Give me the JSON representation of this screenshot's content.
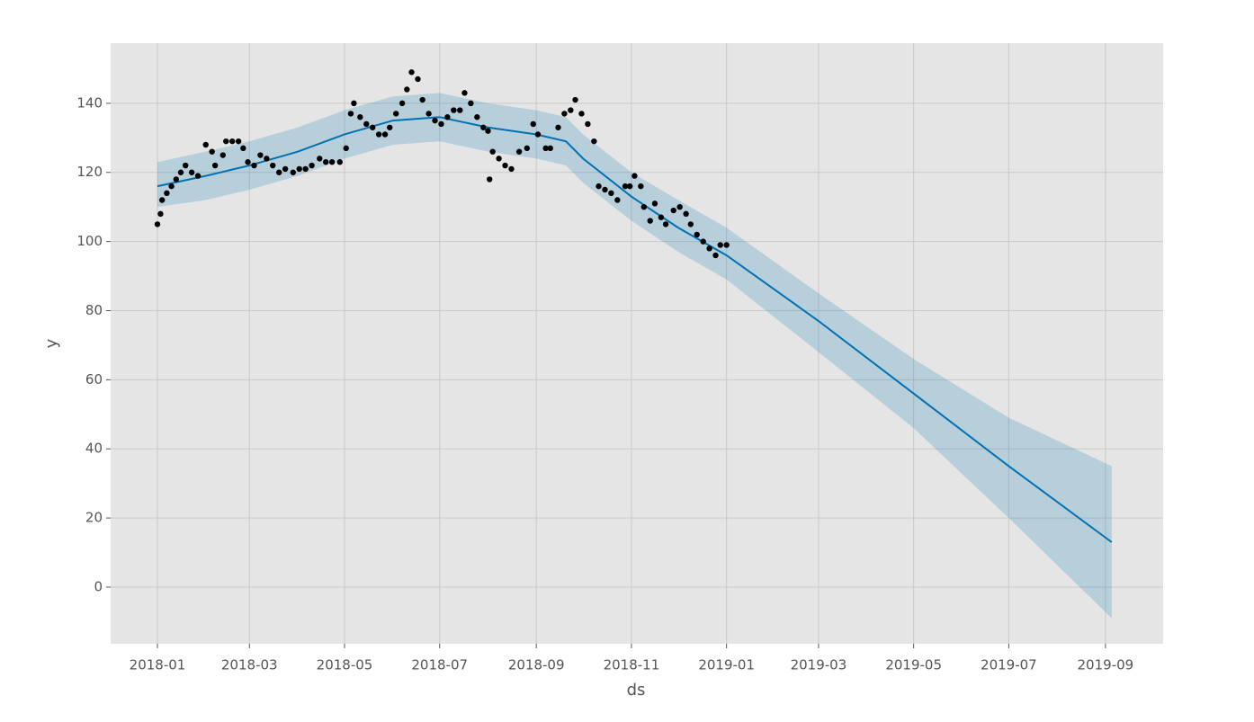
{
  "chart_data": {
    "type": "line",
    "x_label": "ds",
    "y_label": "y",
    "xlim": [
      17502,
      18177
    ],
    "ylim": [
      -16.4,
      157.4
    ],
    "xticks": [
      {
        "value": 17532,
        "label": "2018-01"
      },
      {
        "value": 17591,
        "label": "2018-03"
      },
      {
        "value": 17652,
        "label": "2018-05"
      },
      {
        "value": 17713,
        "label": "2018-07"
      },
      {
        "value": 17775,
        "label": "2018-09"
      },
      {
        "value": 17836,
        "label": "2018-11"
      },
      {
        "value": 17897,
        "label": "2019-01"
      },
      {
        "value": 17956,
        "label": "2019-03"
      },
      {
        "value": 18017,
        "label": "2019-05"
      },
      {
        "value": 18078,
        "label": "2019-07"
      },
      {
        "value": 18140,
        "label": "2019-09"
      }
    ],
    "yticks": [
      0,
      20,
      40,
      60,
      80,
      100,
      120,
      140
    ],
    "grid": true,
    "background": "#e5e5e5",
    "grid_color": "#c9c9c9",
    "points": {
      "color": "#000000",
      "x": [
        17532,
        17534,
        17535,
        17538,
        17541,
        17544,
        17547,
        17550,
        17554,
        17558,
        17563,
        17567,
        17569,
        17574,
        17576,
        17580,
        17584,
        17587,
        17590,
        17594,
        17598,
        17602,
        17606,
        17610,
        17614,
        17619,
        17623,
        17627,
        17631,
        17636,
        17640,
        17644,
        17649,
        17653,
        17656,
        17658,
        17662,
        17666,
        17670,
        17674,
        17678,
        17681,
        17685,
        17689,
        17692,
        17695,
        17699,
        17702,
        17706,
        17710,
        17714,
        17718,
        17722,
        17726,
        17729,
        17733,
        17737,
        17741,
        17744,
        17745,
        17747,
        17751,
        17755,
        17759,
        17764,
        17769,
        17773,
        17776,
        17781,
        17784,
        17789,
        17793,
        17797,
        17800,
        17804,
        17808,
        17812,
        17815,
        17819,
        17823,
        17827,
        17832,
        17835,
        17838,
        17842,
        17844,
        17848,
        17851,
        17855,
        17858,
        17863,
        17867,
        17871,
        17874,
        17878,
        17882,
        17886,
        17890,
        17893,
        17897
      ],
      "values": [
        105,
        108,
        112,
        114,
        116,
        118,
        120,
        122,
        120,
        119,
        128,
        126,
        122,
        125,
        129,
        129,
        129,
        127,
        123,
        122,
        125,
        124,
        122,
        120,
        121,
        120,
        121,
        121,
        122,
        124,
        123,
        123,
        123,
        127,
        137,
        140,
        136,
        134,
        133,
        131,
        131,
        133,
        137,
        140,
        144,
        149,
        147,
        141,
        137,
        135,
        134,
        136,
        138,
        138,
        143,
        140,
        136,
        133,
        132,
        118,
        126,
        124,
        122,
        121,
        126,
        127,
        134,
        131,
        127,
        127,
        133,
        137,
        138,
        141,
        137,
        134,
        129,
        116,
        115,
        114,
        112,
        116,
        116,
        119,
        116,
        110,
        106,
        111,
        107,
        105,
        109,
        110,
        108,
        105,
        102,
        100,
        98,
        96,
        99,
        99
      ]
    },
    "forecast": {
      "color": "#0072b2",
      "band_color": "#0072b2",
      "x": [
        17532,
        17563,
        17591,
        17622,
        17652,
        17683,
        17713,
        17744,
        17775,
        17794,
        17805,
        17836,
        17866,
        17897,
        17956,
        18017,
        18078,
        18144
      ],
      "values": [
        116,
        119,
        122,
        126,
        131,
        135,
        136,
        133,
        131,
        129,
        124,
        113,
        104,
        96,
        77,
        56,
        35,
        13
      ],
      "lower": [
        110,
        112,
        115,
        119,
        124,
        128,
        129,
        126,
        124,
        122,
        117,
        106,
        97,
        89,
        68,
        46,
        20,
        -9
      ],
      "upper": [
        123,
        126,
        129,
        133,
        138,
        142,
        143,
        140,
        138,
        136,
        131,
        120,
        112,
        104,
        85,
        66,
        49,
        35
      ]
    }
  }
}
